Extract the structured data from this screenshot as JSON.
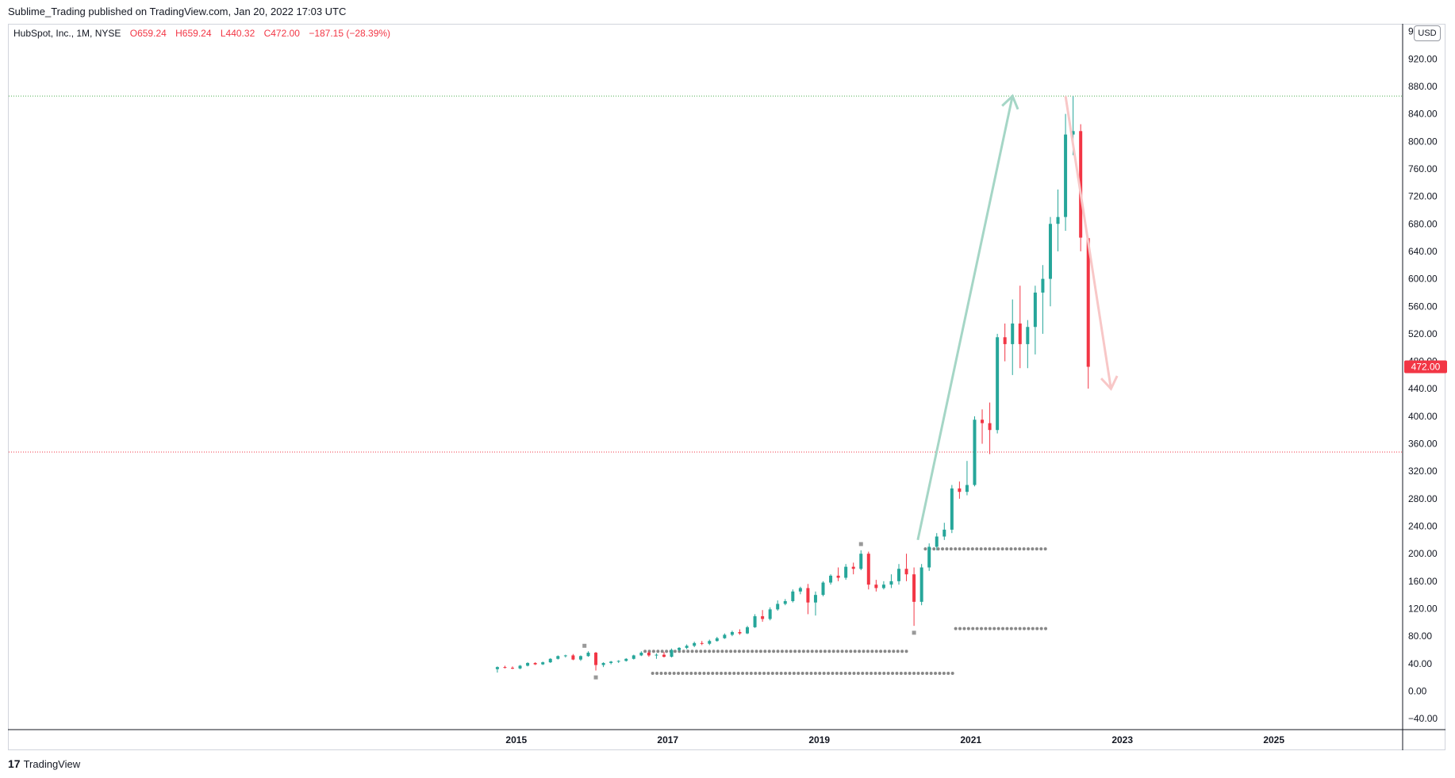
{
  "header": {
    "published_by": "Sublime_Trading published on TradingView.com, Jan 20, 2022 17:03 UTC"
  },
  "legend": {
    "symbol": "HubSpot, Inc., 1M, NYSE",
    "open": "O659.24",
    "high": "H659.24",
    "low": "L440.32",
    "close": "C472.00",
    "change": "−187.15 (−28.39%)"
  },
  "currency": "USD",
  "price_label": "472.00",
  "footer": {
    "brand": "TradingView",
    "logo_text": "17"
  },
  "colors": {
    "up": "#26a69a",
    "down": "#f23645",
    "level_green": "#4caf50",
    "level_red": "#f23645",
    "arrow_up": "#a5d6c6",
    "arrow_down": "#f8c7c7",
    "dots": "#888888"
  },
  "chart_data": {
    "type": "candlestick",
    "x_ticks": [
      "2015",
      "2017",
      "2019",
      "2021",
      "2023",
      "2025"
    ],
    "y_ticks": [
      "−40.00",
      "0.00",
      "40.00",
      "80.00",
      "120.00",
      "160.00",
      "200.00",
      "240.00",
      "280.00",
      "320.00",
      "360.00",
      "400.00",
      "440.00",
      "480.00",
      "520.00",
      "560.00",
      "600.00",
      "640.00",
      "680.00",
      "720.00",
      "760.00",
      "800.00",
      "840.00",
      "880.00",
      "920.00",
      "960.00"
    ],
    "ylim": [
      -56,
      970
    ],
    "xlim": [
      2008.3,
      2026.7
    ],
    "horizontal_levels": [
      {
        "price": 866,
        "color": "green",
        "style": "dotted"
      },
      {
        "price": 348,
        "color": "red",
        "style": "dotted"
      }
    ],
    "trend_arrows": [
      {
        "direction": "up",
        "from": [
          "2020.3",
          220
        ],
        "to": [
          "2021.55",
          866
        ]
      },
      {
        "direction": "down",
        "from": [
          "2022.25",
          866
        ],
        "to": [
          "2022.85",
          440
        ]
      }
    ],
    "dot_levels": [
      {
        "price": 207,
        "from": 2020.4,
        "to": 2022.0
      },
      {
        "price": 91,
        "from": 2020.8,
        "to": 2022.0
      },
      {
        "price": 58,
        "from": 2016.7,
        "to": 2020.2
      },
      {
        "price": 26,
        "from": 2016.8,
        "to": 2020.8
      }
    ],
    "squares": [
      {
        "x": 2015.9,
        "y": 66
      },
      {
        "x": 2016.05,
        "y": 20
      },
      {
        "x": 2019.55,
        "y": 214
      },
      {
        "x": 2020.25,
        "y": 85
      }
    ],
    "candles": [
      [
        2014.75,
        32,
        36,
        27,
        35
      ],
      [
        2014.85,
        35,
        37,
        33,
        34
      ],
      [
        2014.95,
        34,
        36,
        32,
        33
      ],
      [
        2015.05,
        33,
        38,
        32,
        37
      ],
      [
        2015.15,
        37,
        42,
        36,
        41
      ],
      [
        2015.25,
        41,
        42,
        38,
        39
      ],
      [
        2015.35,
        39,
        43,
        38,
        42
      ],
      [
        2015.45,
        42,
        48,
        41,
        47
      ],
      [
        2015.55,
        47,
        52,
        46,
        51
      ],
      [
        2015.65,
        51,
        53,
        49,
        52
      ],
      [
        2015.75,
        52,
        54,
        45,
        46
      ],
      [
        2015.85,
        46,
        52,
        44,
        51
      ],
      [
        2015.95,
        51,
        58,
        50,
        56
      ],
      [
        2016.05,
        56,
        57,
        30,
        38
      ],
      [
        2016.15,
        38,
        42,
        35,
        41
      ],
      [
        2016.25,
        41,
        44,
        39,
        43
      ],
      [
        2016.35,
        43,
        45,
        41,
        44
      ],
      [
        2016.45,
        44,
        48,
        43,
        47
      ],
      [
        2016.55,
        47,
        53,
        46,
        52
      ],
      [
        2016.65,
        52,
        58,
        51,
        56
      ],
      [
        2016.75,
        56,
        58,
        50,
        52
      ],
      [
        2016.85,
        52,
        55,
        47,
        53
      ],
      [
        2016.95,
        53,
        57,
        49,
        50
      ],
      [
        2017.05,
        50,
        62,
        49,
        60
      ],
      [
        2017.15,
        60,
        64,
        58,
        63
      ],
      [
        2017.25,
        63,
        68,
        61,
        66
      ],
      [
        2017.35,
        66,
        72,
        64,
        70
      ],
      [
        2017.45,
        70,
        73,
        67,
        69
      ],
      [
        2017.55,
        69,
        75,
        67,
        73
      ],
      [
        2017.65,
        73,
        79,
        72,
        77
      ],
      [
        2017.75,
        77,
        84,
        76,
        82
      ],
      [
        2017.85,
        82,
        88,
        80,
        86
      ],
      [
        2017.95,
        86,
        90,
        82,
        84
      ],
      [
        2018.05,
        84,
        95,
        83,
        93
      ],
      [
        2018.15,
        93,
        112,
        92,
        109
      ],
      [
        2018.25,
        109,
        118,
        101,
        105
      ],
      [
        2018.35,
        105,
        122,
        103,
        119
      ],
      [
        2018.45,
        119,
        132,
        117,
        127
      ],
      [
        2018.55,
        127,
        134,
        125,
        131
      ],
      [
        2018.65,
        131,
        148,
        129,
        145
      ],
      [
        2018.75,
        145,
        152,
        141,
        150
      ],
      [
        2018.85,
        150,
        156,
        112,
        129
      ],
      [
        2018.95,
        129,
        145,
        110,
        140
      ],
      [
        2019.05,
        140,
        160,
        138,
        158
      ],
      [
        2019.15,
        158,
        170,
        155,
        168
      ],
      [
        2019.25,
        168,
        180,
        160,
        165
      ],
      [
        2019.35,
        165,
        185,
        162,
        181
      ],
      [
        2019.45,
        181,
        187,
        170,
        178
      ],
      [
        2019.55,
        178,
        205,
        176,
        200
      ],
      [
        2019.65,
        200,
        203,
        148,
        155
      ],
      [
        2019.75,
        155,
        162,
        145,
        150
      ],
      [
        2019.85,
        150,
        160,
        148,
        155
      ],
      [
        2019.95,
        155,
        170,
        150,
        160
      ],
      [
        2020.05,
        160,
        185,
        155,
        178
      ],
      [
        2020.15,
        178,
        200,
        160,
        170
      ],
      [
        2020.25,
        170,
        180,
        95,
        130
      ],
      [
        2020.35,
        130,
        185,
        125,
        180
      ],
      [
        2020.45,
        180,
        215,
        175,
        210
      ],
      [
        2020.55,
        210,
        230,
        205,
        225
      ],
      [
        2020.65,
        225,
        245,
        220,
        235
      ],
      [
        2020.75,
        235,
        300,
        230,
        295
      ],
      [
        2020.85,
        295,
        305,
        280,
        290
      ],
      [
        2020.95,
        290,
        335,
        285,
        300
      ],
      [
        2021.05,
        300,
        400,
        298,
        395
      ],
      [
        2021.15,
        395,
        410,
        360,
        390
      ],
      [
        2021.25,
        390,
        420,
        345,
        380
      ],
      [
        2021.35,
        380,
        520,
        375,
        515
      ],
      [
        2021.45,
        515,
        535,
        480,
        505
      ],
      [
        2021.55,
        505,
        570,
        460,
        535
      ],
      [
        2021.65,
        535,
        590,
        470,
        505
      ],
      [
        2021.75,
        505,
        540,
        470,
        530
      ],
      [
        2021.85,
        530,
        590,
        490,
        580
      ],
      [
        2021.95,
        580,
        620,
        520,
        600
      ],
      [
        2022.05,
        600,
        690,
        560,
        680
      ],
      [
        2022.15,
        680,
        730,
        640,
        690
      ],
      [
        2022.25,
        690,
        840,
        670,
        810
      ],
      [
        2022.35,
        810,
        866,
        780,
        815
      ],
      [
        2022.45,
        815,
        825,
        640,
        660
      ],
      [
        2022.55,
        659.24,
        659.24,
        440.32,
        472
      ]
    ]
  }
}
